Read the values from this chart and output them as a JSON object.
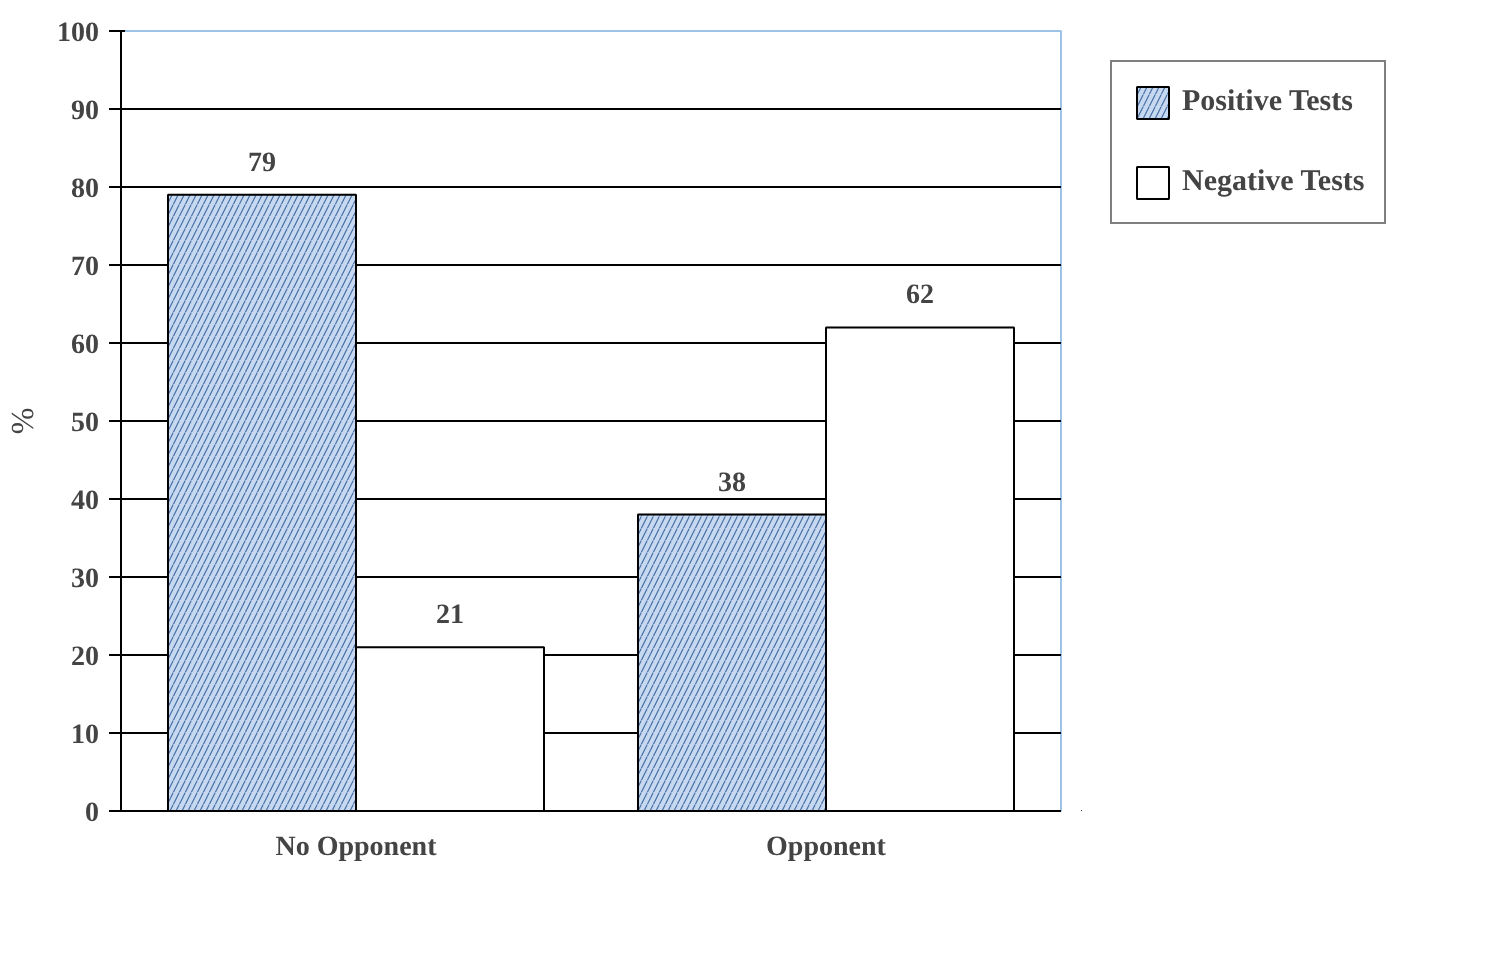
{
  "chart_data": {
    "type": "bar",
    "categories": [
      "No Opponent",
      "Opponent"
    ],
    "ylabel": "%",
    "series": [
      {
        "name": "Positive Tests",
        "color": "#c6d9f0",
        "values": [
          79,
          38
        ]
      },
      {
        "name": "Negative Tests",
        "color": "#ffffff",
        "values": [
          21,
          62
        ]
      }
    ],
    "ylim": [
      0,
      100
    ],
    "yticks": [
      0,
      10,
      20,
      30,
      40,
      50,
      60,
      70,
      80,
      90,
      100
    ],
    "grid": "y",
    "legend": "top right",
    "data_labels": true
  }
}
